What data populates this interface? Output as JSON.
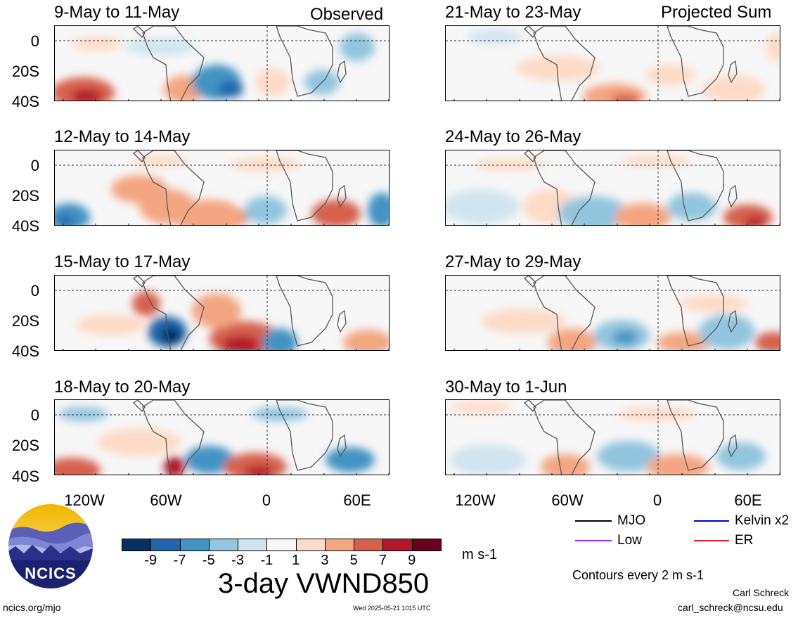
{
  "headers": {
    "observed": "Observed",
    "projected": "Projected Sum"
  },
  "panels_left": [
    {
      "date": "9-May to 11-May"
    },
    {
      "date": "12-May to 14-May"
    },
    {
      "date": "15-May to 17-May"
    },
    {
      "date": "18-May to 20-May"
    }
  ],
  "panels_right": [
    {
      "date": "21-May to 23-May"
    },
    {
      "date": "24-May to 26-May"
    },
    {
      "date": "27-May to 29-May"
    },
    {
      "date": "30-May to 1-Jun"
    }
  ],
  "lat_labels": [
    "0",
    "20S",
    "40S"
  ],
  "lon_labels": [
    "120W",
    "60W",
    "0",
    "60E"
  ],
  "colorbar": {
    "colors": [
      "#053061",
      "#2166ac",
      "#4393c3",
      "#92c5de",
      "#d1e5f0",
      "#f7f7f7",
      "#fddbc7",
      "#f4a582",
      "#d6604d",
      "#b2182b",
      "#67001f"
    ],
    "labels": [
      "-9",
      "-7",
      "-5",
      "-3",
      "-1",
      "1",
      "3",
      "5",
      "7",
      "9"
    ],
    "units": "m s-1"
  },
  "title": "3-day VWND850",
  "legend": {
    "items": [
      {
        "label": "MJO",
        "color": "#000000"
      },
      {
        "label": "Kelvin x2",
        "color": "#0000cc"
      },
      {
        "label": "Low",
        "color": "#9b30ff"
      },
      {
        "label": "ER",
        "color": "#e02020"
      }
    ],
    "contours_note": "Contours every 2 m s-1"
  },
  "logo": {
    "text": "NCICS"
  },
  "footer": {
    "site": "ncics.org/mjo",
    "timestamp": "Wed 2025-05-21 1015 UTC",
    "author": "Carl Schreck",
    "email": "carl_schreck@ncsu.edu"
  }
}
